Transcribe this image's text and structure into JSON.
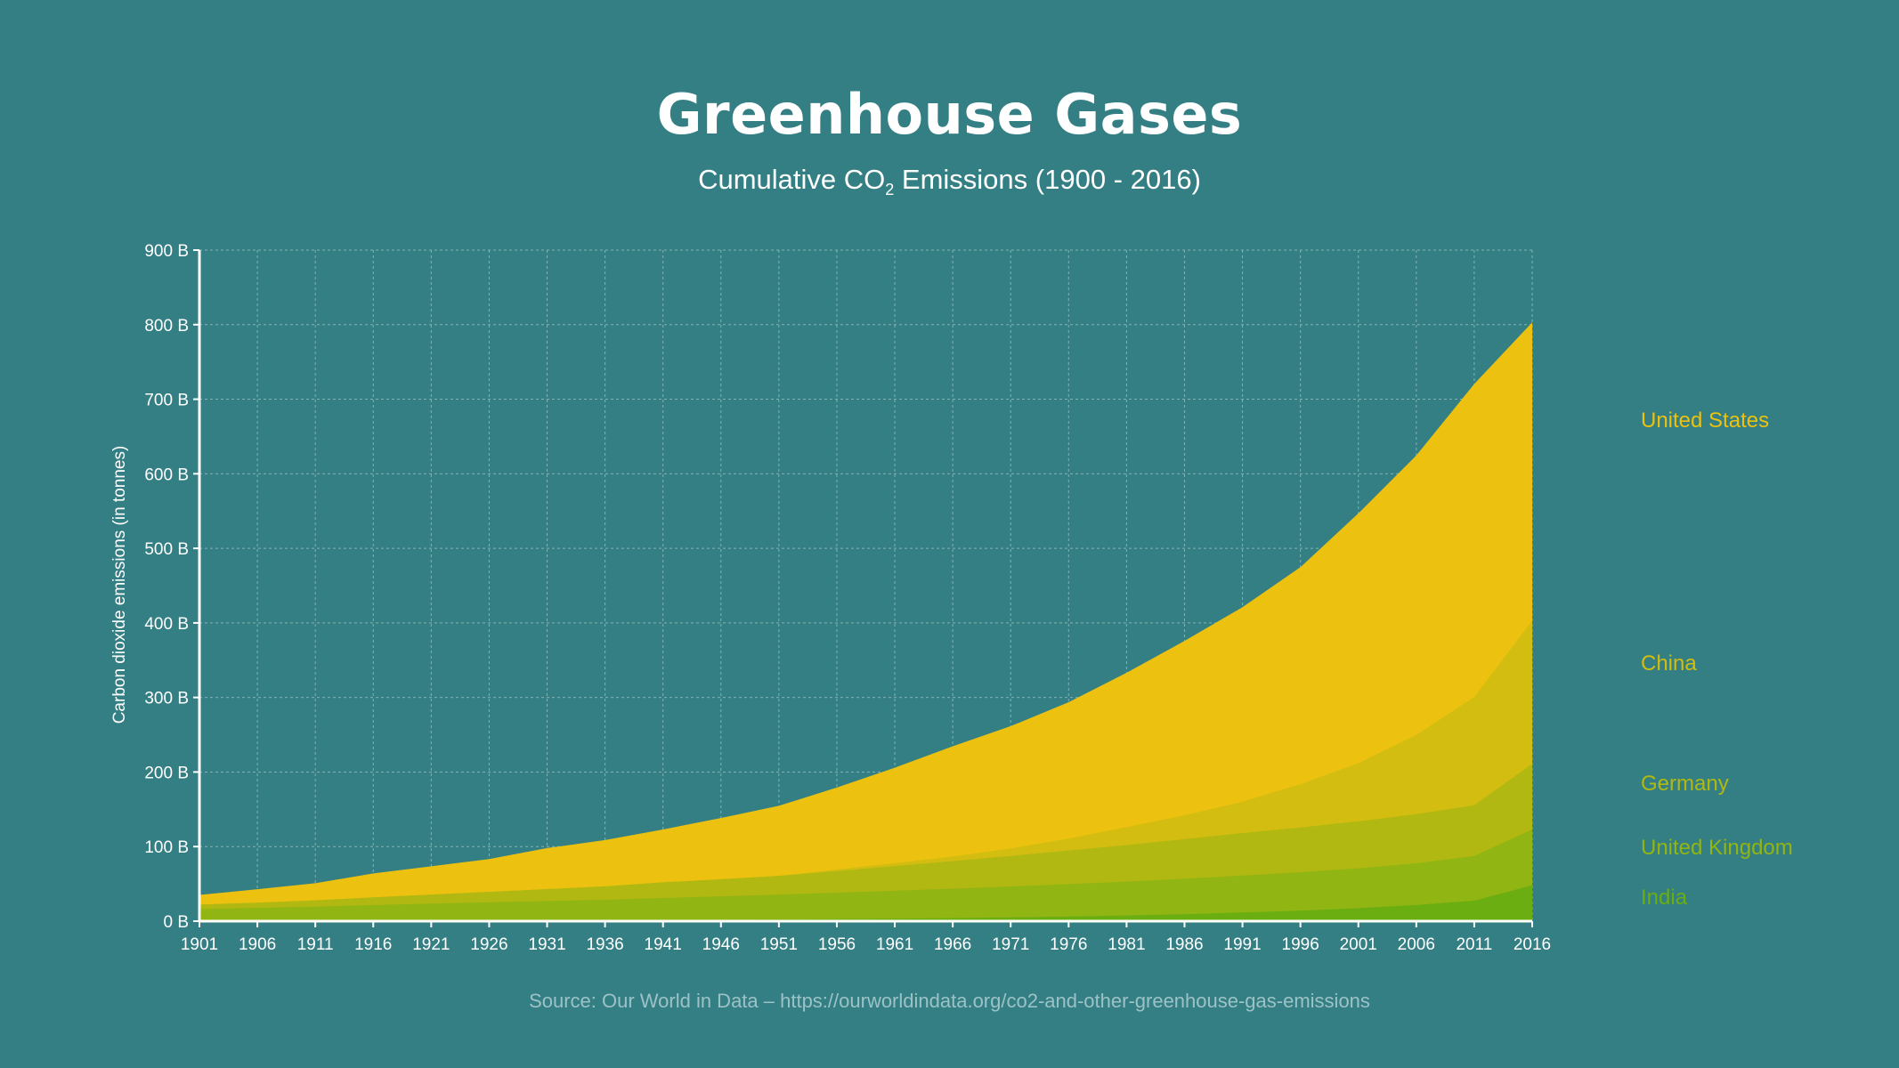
{
  "title": "Greenhouse Gases",
  "subtitle_prefix": "Cumulative CO",
  "subtitle_sub": "2",
  "subtitle_suffix": " Emissions (1900 - 2016)",
  "source": "Source: Our World in Data – https://ourworldindata.org/co2-and-other-greenhouse-gas-emissions",
  "colors": {
    "background": "#347f84",
    "grid": "#7fb3b5",
    "axis": "#ffffff",
    "United States": "#ecc10f",
    "China": "#d2bd10",
    "Germany": "#b2b812",
    "United Kingdom": "#91b512",
    "India": "#6aae12"
  },
  "chart_data": {
    "type": "area",
    "stacked": true,
    "ylabel": "Carbon dioxide emissions (in tonnes)",
    "xlim": [
      1901,
      2016
    ],
    "ylim": [
      0,
      900
    ],
    "y_unit": "B",
    "x_ticks": [
      1901,
      1906,
      1911,
      1916,
      1921,
      1926,
      1931,
      1936,
      1941,
      1946,
      1951,
      1956,
      1961,
      1966,
      1971,
      1976,
      1981,
      1986,
      1991,
      1996,
      2001,
      2006,
      2011,
      2016
    ],
    "y_ticks": [
      "0 B",
      "100 B",
      "200 B",
      "300 B",
      "400 B",
      "500 B",
      "600 B",
      "700 B",
      "800 B",
      "900 B"
    ],
    "grid": true,
    "legend": "right",
    "x": [
      1901,
      1906,
      1911,
      1916,
      1921,
      1926,
      1931,
      1936,
      1941,
      1946,
      1951,
      1956,
      1961,
      1966,
      1971,
      1976,
      1981,
      1986,
      1991,
      1996,
      2001,
      2006,
      2011,
      2016
    ],
    "series": [
      {
        "name": "India",
        "values": [
          0.2,
          0.3,
          0.4,
          0.5,
          0.6,
          0.8,
          1.0,
          1.2,
          1.5,
          1.8,
          2.2,
          2.7,
          3.3,
          4.1,
          5.0,
          6.2,
          7.6,
          9.4,
          11.6,
          14.2,
          17.4,
          21.6,
          27.5,
          48
        ]
      },
      {
        "name": "United Kingdom",
        "values": [
          16,
          17.5,
          19,
          21,
          23,
          24.5,
          26,
          27.5,
          29.5,
          31.5,
          33.5,
          35.5,
          37.5,
          39.5,
          41.5,
          43.5,
          45.5,
          47.5,
          49.5,
          51.5,
          53.5,
          56,
          60,
          75
        ]
      },
      {
        "name": "Germany",
        "values": [
          6,
          7,
          8.5,
          10.5,
          12,
          14,
          16,
          18,
          21,
          23,
          25,
          29,
          33,
          37,
          41,
          45,
          49,
          53,
          57,
          60,
          63,
          66,
          68,
          88
        ]
      },
      {
        "name": "China",
        "values": [
          0,
          0,
          0,
          0,
          0,
          0,
          0,
          0,
          0,
          0,
          0,
          2,
          4,
          6,
          10,
          16,
          24,
          32,
          42,
          58,
          78,
          106,
          145,
          192
        ]
      },
      {
        "name": "United States",
        "values": [
          13,
          18,
          23,
          32,
          38,
          44,
          55,
          62,
          71,
          82,
          94,
          110,
          128,
          148,
          164,
          183,
          207,
          234,
          261,
          291,
          335,
          375,
          420,
          400
        ]
      }
    ]
  }
}
